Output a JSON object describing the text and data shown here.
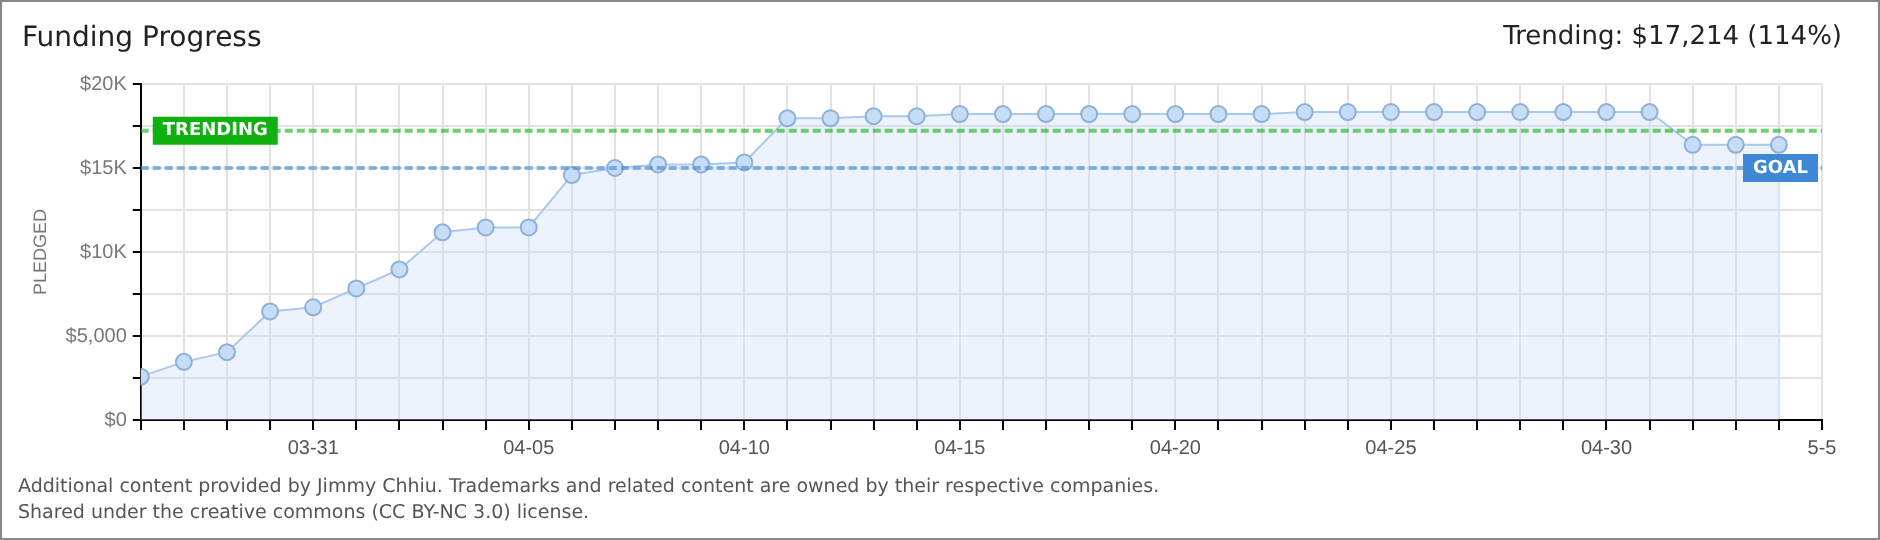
{
  "chart_data": {
    "type": "area",
    "title": "Funding Progress",
    "subtitle": "Trending: $17,214 (114%)",
    "ylabel": "PLEDGED",
    "x": [
      "--03-27",
      "--03-28",
      "--03-29",
      "--03-30",
      "--03-31",
      "--04-01",
      "--04-02",
      "--04-03",
      "--04-04",
      "--04-05",
      "--04-06",
      "--04-07",
      "--04-08",
      "--04-09",
      "--04-10",
      "--04-11",
      "--04-12",
      "--04-13",
      "--04-14",
      "--04-15",
      "--04-16",
      "--04-17",
      "--04-18",
      "--04-19",
      "--04-20",
      "--04-21",
      "--04-22",
      "--04-23",
      "--04-24",
      "--04-25",
      "--04-26",
      "--04-27",
      "--04-28",
      "--04-29",
      "--04-30",
      "--05-01",
      "--05-02",
      "--05-03",
      "--05-04"
    ],
    "series": [
      {
        "color": "#a9c9ee",
        "values": [
          2580,
          3460,
          4040,
          6460,
          6710,
          7830,
          8960,
          11170,
          11460,
          11460,
          14580,
          15000,
          15210,
          15210,
          15330,
          17960,
          17960,
          18080,
          18080,
          18210,
          18210,
          18210,
          18210,
          18210,
          18210,
          18210,
          18210,
          18330,
          18330,
          18330,
          18330,
          18330,
          18330,
          18330,
          18330,
          18330,
          16380,
          16380,
          16380
        ]
      }
    ],
    "xlim": [
      "--03-27",
      "--05-05"
    ],
    "xticks": [
      {
        "value": "--03-27",
        "label": null
      },
      {
        "value": "--03-28",
        "label": null
      },
      {
        "value": "--03-29",
        "label": null
      },
      {
        "value": "--03-30",
        "label": null
      },
      {
        "value": "--03-31",
        "label": "03-31"
      },
      {
        "value": "--04-01",
        "label": null
      },
      {
        "value": "--04-02",
        "label": null
      },
      {
        "value": "--04-03",
        "label": null
      },
      {
        "value": "--04-04",
        "label": null
      },
      {
        "value": "--04-05",
        "label": "04-05"
      },
      {
        "value": "--04-06",
        "label": null
      },
      {
        "value": "--04-07",
        "label": null
      },
      {
        "value": "--04-08",
        "label": null
      },
      {
        "value": "--04-09",
        "label": null
      },
      {
        "value": "--04-10",
        "label": "04-10"
      },
      {
        "value": "--04-11",
        "label": null
      },
      {
        "value": "--04-12",
        "label": null
      },
      {
        "value": "--04-13",
        "label": null
      },
      {
        "value": "--04-14",
        "label": null
      },
      {
        "value": "--04-15",
        "label": "04-15"
      },
      {
        "value": "--04-16",
        "label": null
      },
      {
        "value": "--04-17",
        "label": null
      },
      {
        "value": "--04-18",
        "label": null
      },
      {
        "value": "--04-19",
        "label": null
      },
      {
        "value": "--04-20",
        "label": "04-20"
      },
      {
        "value": "--04-21",
        "label": null
      },
      {
        "value": "--04-22",
        "label": null
      },
      {
        "value": "--04-23",
        "label": null
      },
      {
        "value": "--04-24",
        "label": null
      },
      {
        "value": "--04-25",
        "label": "04-25"
      },
      {
        "value": "--04-26",
        "label": null
      },
      {
        "value": "--04-27",
        "label": null
      },
      {
        "value": "--04-28",
        "label": null
      },
      {
        "value": "--04-29",
        "label": null
      },
      {
        "value": "--04-30",
        "label": "04-30"
      },
      {
        "value": "--05-01",
        "label": null
      },
      {
        "value": "--05-02",
        "label": null
      },
      {
        "value": "--05-03",
        "label": null
      },
      {
        "value": "--05-04",
        "label": null
      },
      {
        "value": "--05-05",
        "label": "5-5"
      }
    ],
    "ylim": [
      0,
      20000
    ],
    "yticks": [
      {
        "value": 0,
        "label": "$0"
      },
      {
        "value": 2500,
        "label": null
      },
      {
        "value": 5000,
        "label": "$5,000"
      },
      {
        "value": 7500,
        "label": null
      },
      {
        "value": 10000,
        "label": "$10K"
      },
      {
        "value": 12500,
        "label": null
      },
      {
        "value": 15000,
        "label": "$15K"
      },
      {
        "value": 17500,
        "label": null
      },
      {
        "value": 20000,
        "label": "$20K"
      }
    ],
    "ref_lines": [
      {
        "axis": "y",
        "value": 17214,
        "label": "TRENDING",
        "color": "#10b010",
        "line_style": "dashed"
      },
      {
        "axis": "y",
        "value": 15000,
        "label": "GOAL",
        "color": "#3f88d6",
        "line_style": "dashed"
      }
    ],
    "annotations": [
      "Additional content provided by Jimmy Chhiu. Trademarks and related content are owned by their respective companies.",
      "Shared under the creative commons (CC BY-NC 3.0) license."
    ],
    "grid": true,
    "marker": "circle",
    "legend": false
  }
}
